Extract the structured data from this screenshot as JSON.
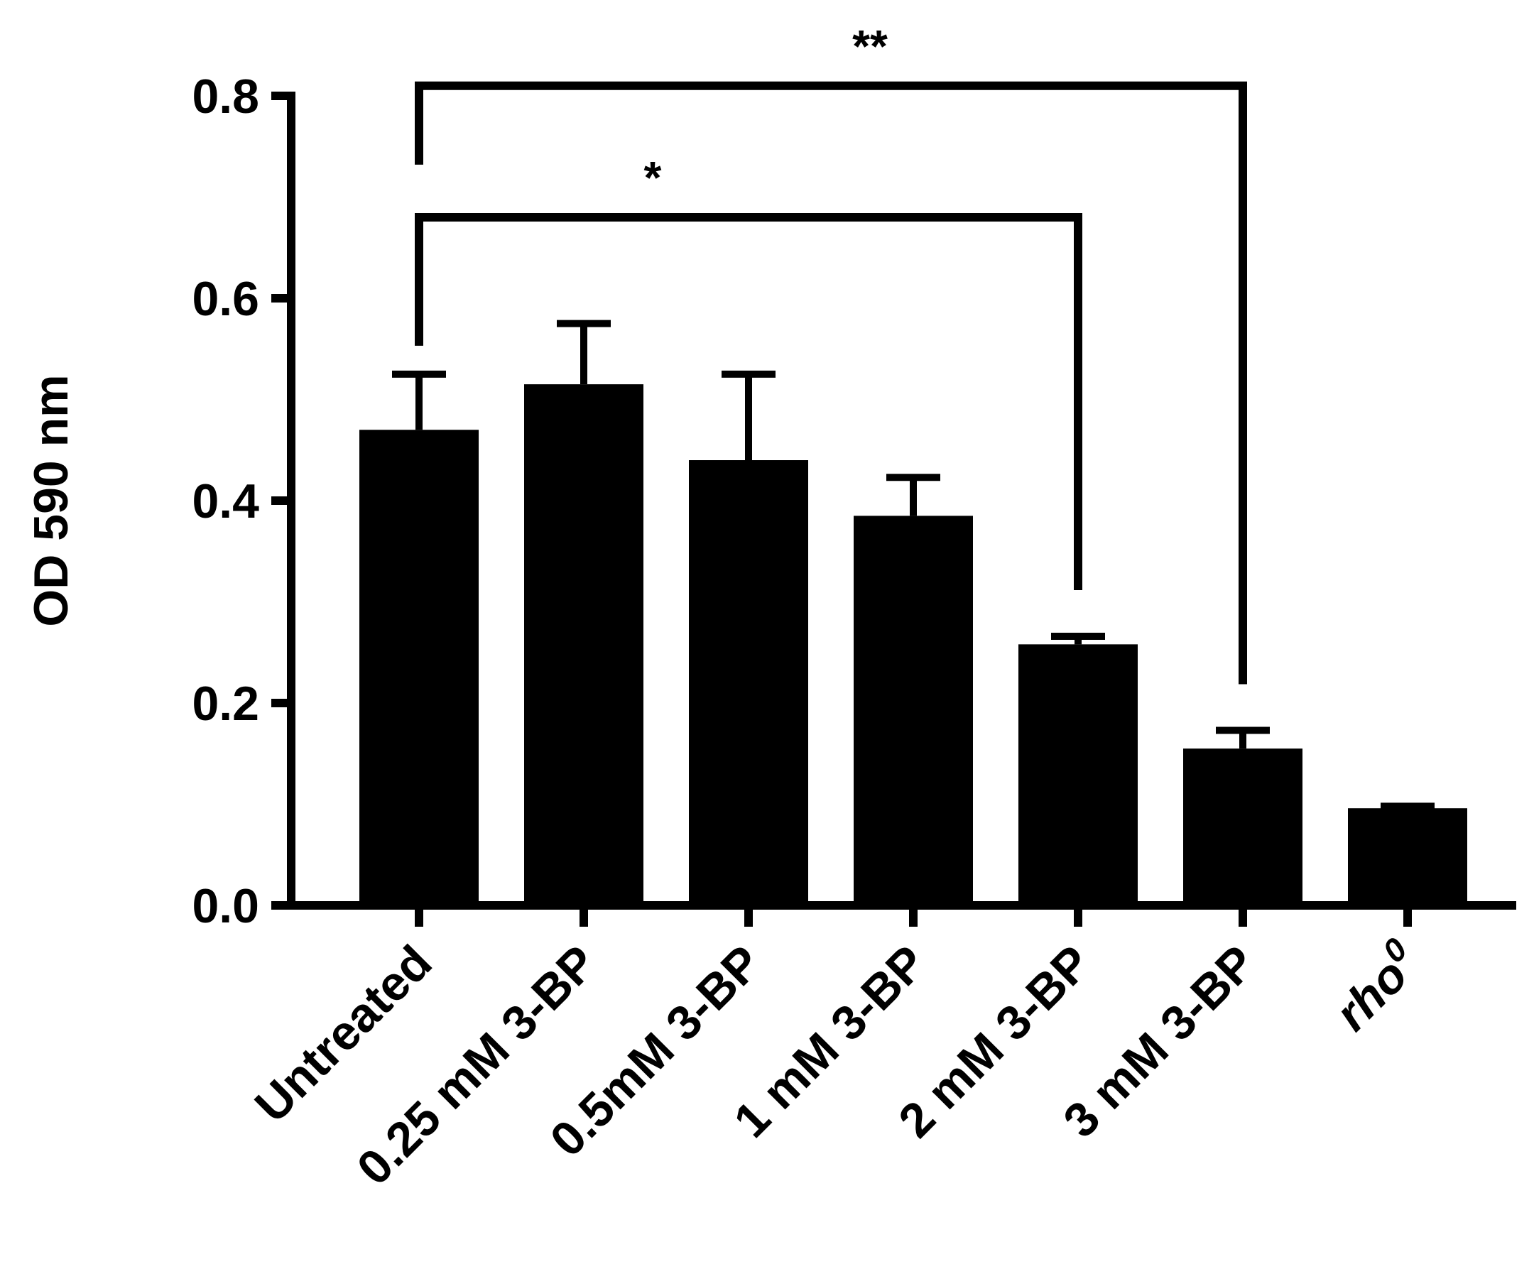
{
  "chart_data": {
    "type": "bar",
    "title": "",
    "xlabel": "",
    "ylabel": "OD 590 nm",
    "ylim": [
      0,
      0.8
    ],
    "yticks": [
      "0.0",
      "0.2",
      "0.4",
      "0.6",
      "0.8"
    ],
    "grid": false,
    "legend": "none",
    "bar_color": "#000000",
    "categories": [
      "Untreated",
      "0.25 mM 3-BP",
      "0.5mM 3-BP",
      "1 mM 3-BP",
      "2 mM 3-BP",
      "3 mM 3-BP",
      "rho"
    ],
    "category_superscripts": [
      "",
      "",
      "",
      "",
      "",
      "",
      "0"
    ],
    "category_italic": [
      false,
      false,
      false,
      false,
      false,
      false,
      true
    ],
    "values": [
      0.47,
      0.515,
      0.44,
      0.385,
      0.258,
      0.155,
      0.096
    ],
    "errors": [
      0.055,
      0.06,
      0.085,
      0.038,
      0.008,
      0.018,
      0.002
    ],
    "significance": [
      {
        "from": 0,
        "to": 4,
        "label": "*",
        "y": 0.68
      },
      {
        "from": 0,
        "to": 5,
        "label": "**",
        "y": 0.81
      }
    ]
  }
}
